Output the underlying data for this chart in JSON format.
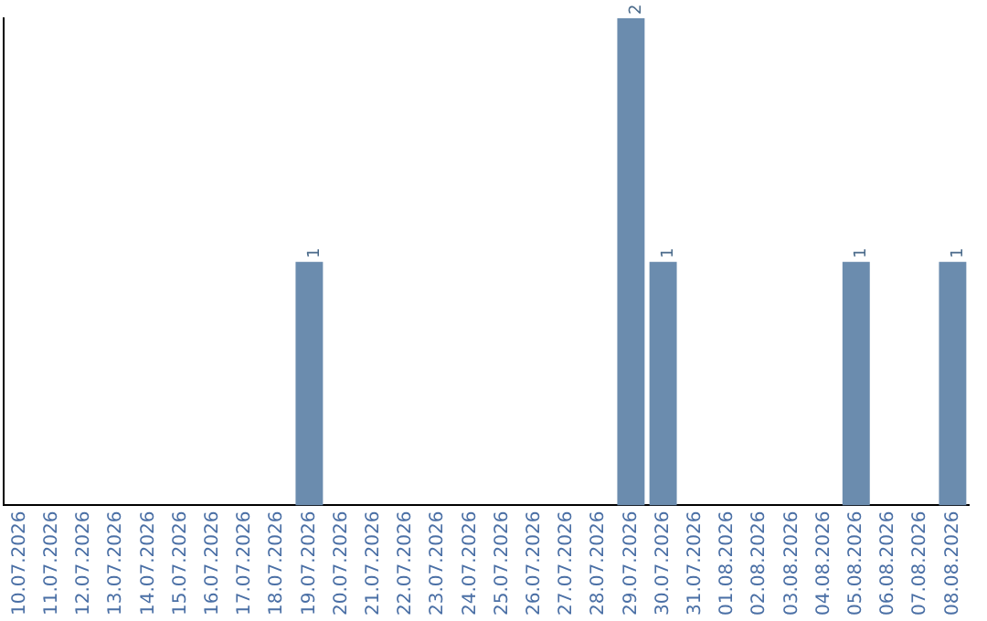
{
  "chart_data": {
    "type": "bar",
    "categories": [
      "10.07.2026",
      "11.07.2026",
      "12.07.2026",
      "13.07.2026",
      "14.07.2026",
      "15.07.2026",
      "16.07.2026",
      "17.07.2026",
      "18.07.2026",
      "19.07.2026",
      "20.07.2026",
      "21.07.2026",
      "22.07.2026",
      "23.07.2026",
      "24.07.2026",
      "25.07.2026",
      "26.07.2026",
      "27.07.2026",
      "28.07.2026",
      "29.07.2026",
      "30.07.2026",
      "31.07.2026",
      "01.08.2026",
      "02.08.2026",
      "03.08.2026",
      "04.08.2026",
      "05.08.2026",
      "06.08.2026",
      "07.08.2026",
      "08.08.2026"
    ],
    "values": [
      0,
      0,
      0,
      0,
      0,
      0,
      0,
      0,
      0,
      1,
      0,
      0,
      0,
      0,
      0,
      0,
      0,
      0,
      0,
      2,
      1,
      0,
      0,
      0,
      0,
      0,
      1,
      0,
      0,
      1
    ],
    "value_labels": [
      null,
      null,
      null,
      null,
      null,
      null,
      null,
      null,
      null,
      "1",
      null,
      null,
      null,
      null,
      null,
      null,
      null,
      null,
      null,
      "2",
      "1",
      null,
      null,
      null,
      null,
      null,
      "1",
      null,
      null,
      "1"
    ],
    "color": "#6b8cae",
    "ylim": [
      0,
      2
    ],
    "tick_labels": "x",
    "grid": false,
    "legend": false
  }
}
